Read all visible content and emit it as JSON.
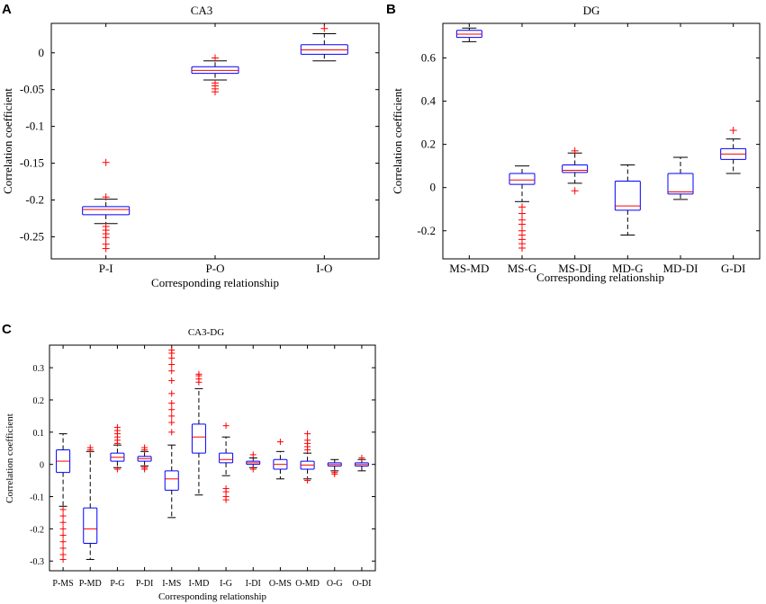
{
  "chart_data": [
    {
      "type": "box",
      "panel": "A",
      "title": "CA3",
      "xlabel": "Corresponding relationship",
      "ylabel": "Correlation coefficient",
      "ylim": [
        -0.28,
        0.04
      ],
      "yticks": [
        0,
        -0.05,
        -0.1,
        -0.15,
        -0.2,
        -0.25
      ],
      "ytick_labels": [
        "0",
        "-0.05",
        "-0.1",
        "-0.15",
        "-0.2",
        "-0.25"
      ],
      "categories": [
        "P-I",
        "P-O",
        "I-O"
      ],
      "boxes": [
        {
          "q1": -0.22,
          "median": -0.213,
          "q3": -0.209,
          "low": -0.232,
          "high": -0.199,
          "outliers": [
            -0.149,
            -0.196,
            -0.236,
            -0.241,
            -0.246,
            -0.251,
            -0.26,
            -0.266
          ]
        },
        {
          "q1": -0.028,
          "median": -0.024,
          "q3": -0.019,
          "low": -0.037,
          "high": -0.011,
          "outliers": [
            -0.007,
            -0.041,
            -0.045,
            -0.049,
            -0.053
          ]
        },
        {
          "q1": -0.002,
          "median": 0.004,
          "q3": 0.011,
          "low": -0.011,
          "high": 0.026,
          "outliers": [
            0.033
          ]
        }
      ]
    },
    {
      "type": "box",
      "panel": "B",
      "title": "DG",
      "xlabel": "Corresponding relationship",
      "ylabel": "Correlation coefficient",
      "ylim": [
        -0.33,
        0.76
      ],
      "yticks": [
        0.6,
        0.4,
        0.2,
        0,
        -0.2
      ],
      "ytick_labels": [
        "0.6",
        "0.4",
        "0.2",
        "0",
        "-0.2"
      ],
      "categories": [
        "MS-MD",
        "MS-G",
        "MS-DI",
        "MD-G",
        "MD-DI",
        "G-DI"
      ],
      "boxes": [
        {
          "q1": 0.695,
          "median": 0.71,
          "q3": 0.728,
          "low": 0.675,
          "high": 0.738,
          "outliers": []
        },
        {
          "q1": 0.015,
          "median": 0.035,
          "q3": 0.065,
          "low": -0.065,
          "high": 0.1,
          "outliers": [
            -0.09,
            -0.12,
            -0.15,
            -0.17,
            -0.2,
            -0.22,
            -0.24,
            -0.26,
            -0.28
          ]
        },
        {
          "q1": 0.07,
          "median": 0.08,
          "q3": 0.105,
          "low": 0.02,
          "high": 0.16,
          "outliers": [
            0.17,
            -0.015
          ]
        },
        {
          "q1": -0.105,
          "median": -0.085,
          "q3": 0.03,
          "low": -0.22,
          "high": 0.105,
          "outliers": []
        },
        {
          "q1": -0.03,
          "median": -0.02,
          "q3": 0.065,
          "low": -0.055,
          "high": 0.14,
          "outliers": []
        },
        {
          "q1": 0.13,
          "median": 0.155,
          "q3": 0.18,
          "low": 0.065,
          "high": 0.225,
          "outliers": [
            0.265
          ]
        }
      ]
    },
    {
      "type": "box",
      "panel": "C",
      "title": "CA3-DG",
      "xlabel": "Corresponding relationship",
      "ylabel": "Correlation coefficient",
      "ylim": [
        -0.33,
        0.37
      ],
      "yticks": [
        0.3,
        0.2,
        0.1,
        0,
        -0.1,
        -0.2,
        -0.3
      ],
      "ytick_labels": [
        "0.3",
        "0.2",
        "0.1",
        "0",
        "-0.1",
        "-0.2",
        "-0.3"
      ],
      "categories": [
        "P-MS",
        "P-MD",
        "P-G",
        "P-DI",
        "I-MS",
        "I-MD",
        "I-G",
        "I-DI",
        "O-MS",
        "O-MD",
        "O-G",
        "O-DI"
      ],
      "boxes": [
        {
          "q1": -0.025,
          "median": 0.01,
          "q3": 0.045,
          "low": -0.13,
          "high": 0.095,
          "outliers": [
            -0.14,
            -0.16,
            -0.18,
            -0.2,
            -0.22,
            -0.24,
            -0.26,
            -0.28,
            -0.295
          ]
        },
        {
          "q1": -0.245,
          "median": -0.2,
          "q3": -0.135,
          "low": -0.295,
          "high": 0.04,
          "outliers": [
            0.045,
            0.052
          ]
        },
        {
          "q1": 0.01,
          "median": 0.022,
          "q3": 0.035,
          "low": -0.01,
          "high": 0.06,
          "outliers": [
            0.065,
            0.075,
            0.085,
            0.095,
            0.105,
            0.115,
            -0.015
          ]
        },
        {
          "q1": 0.01,
          "median": 0.018,
          "q3": 0.025,
          "low": -0.005,
          "high": 0.04,
          "outliers": [
            0.045,
            0.052,
            -0.01,
            -0.015
          ]
        },
        {
          "q1": -0.08,
          "median": -0.045,
          "q3": -0.02,
          "low": -0.165,
          "high": 0.06,
          "outliers": [
            0.1,
            0.13,
            0.15,
            0.17,
            0.19,
            0.22,
            0.26,
            0.29,
            0.31,
            0.33,
            0.345,
            0.355
          ]
        },
        {
          "q1": 0.035,
          "median": 0.085,
          "q3": 0.125,
          "low": -0.095,
          "high": 0.235,
          "outliers": [
            0.255,
            0.265,
            0.275,
            0.28
          ]
        },
        {
          "q1": 0.005,
          "median": 0.015,
          "q3": 0.035,
          "low": -0.035,
          "high": 0.085,
          "outliers": [
            0.12,
            -0.075,
            -0.085,
            -0.1,
            -0.11
          ]
        },
        {
          "q1": 0.0,
          "median": 0.005,
          "q3": 0.01,
          "low": -0.01,
          "high": 0.02,
          "outliers": [
            0.03,
            -0.015
          ]
        },
        {
          "q1": -0.015,
          "median": 0.0,
          "q3": 0.015,
          "low": -0.045,
          "high": 0.04,
          "outliers": [
            0.07
          ]
        },
        {
          "q1": -0.015,
          "median": -0.002,
          "q3": 0.01,
          "low": -0.045,
          "high": 0.035,
          "outliers": [
            0.045,
            0.055,
            0.065,
            0.075,
            0.095,
            -0.05
          ]
        },
        {
          "q1": -0.005,
          "median": 0.0,
          "q3": 0.005,
          "low": -0.02,
          "high": 0.015,
          "outliers": [
            -0.025,
            -0.03
          ]
        },
        {
          "q1": -0.005,
          "median": 0.0,
          "q3": 0.005,
          "low": -0.02,
          "high": 0.015,
          "outliers": [
            0.02
          ]
        }
      ]
    }
  ]
}
